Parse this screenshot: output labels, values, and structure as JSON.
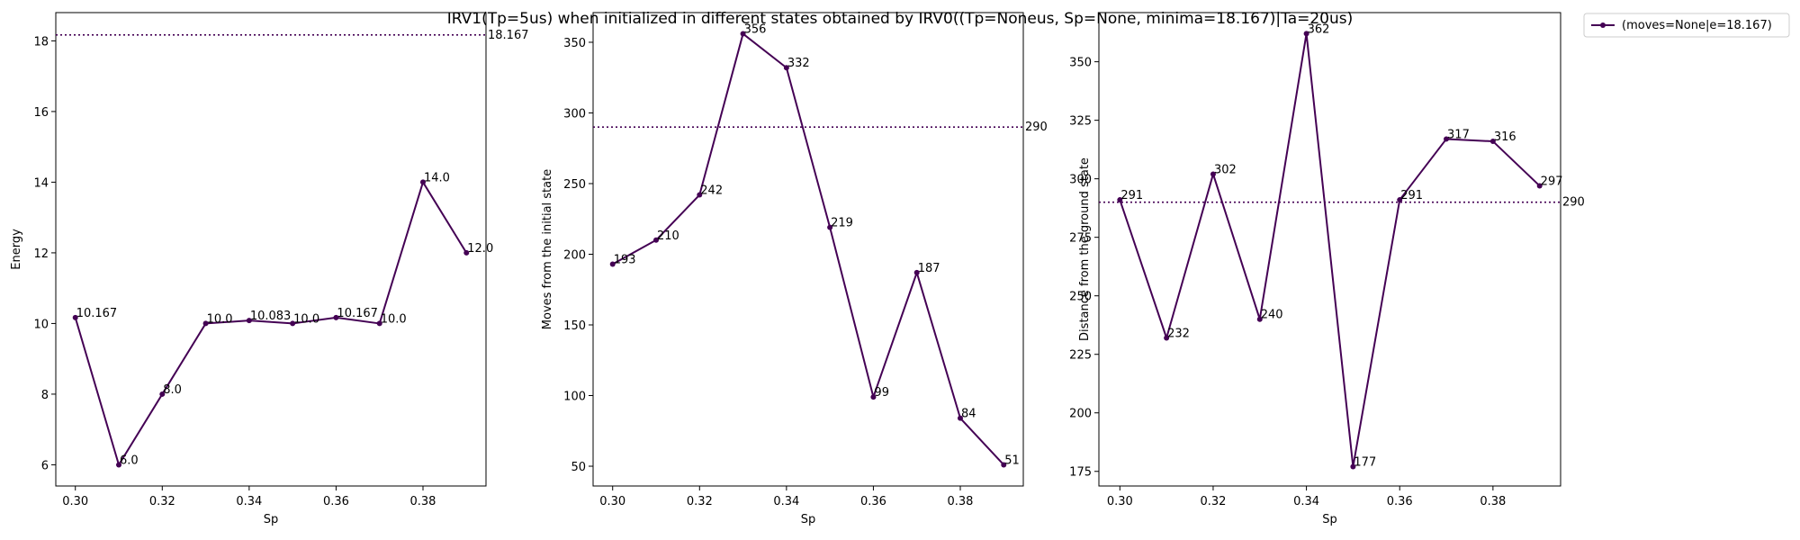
{
  "figure": {
    "title": "IRV1(Tp=5us) when initialized in different states obtained by IRV0((Tp=Noneus, Sp=None, minima=18.167)|Ta=20us)",
    "legend_label": "(moves=None|e=18.167)",
    "line_color": "#440154"
  },
  "chart_data": [
    {
      "type": "line",
      "xlabel": "Sp",
      "ylabel": "Energy",
      "x": [
        0.3,
        0.31,
        0.32,
        0.33,
        0.34,
        0.35,
        0.36,
        0.37,
        0.38,
        0.39
      ],
      "xticks": [
        0.3,
        0.32,
        0.34,
        0.36,
        0.38
      ],
      "xtick_labels": [
        "0.30",
        "0.32",
        "0.34",
        "0.36",
        "0.38"
      ],
      "xlim": [
        0.2955,
        0.3945
      ],
      "yticks": [
        6,
        8,
        10,
        12,
        14,
        16,
        18
      ],
      "ytick_labels": [
        "6",
        "8",
        "10",
        "12",
        "14",
        "16",
        "18"
      ],
      "ylim": [
        5.4,
        18.8
      ],
      "series": [
        {
          "name": "(moves=None|e=18.167)",
          "values": [
            10.167,
            6.0,
            8.0,
            10.0,
            10.083,
            10.0,
            10.167,
            10.0,
            14.0,
            12.0
          ],
          "point_labels": [
            "10.167",
            "6.0",
            "8.0",
            "10.0",
            "10.083",
            "10.0",
            "10.167",
            "10.0",
            "14.0",
            "12.0"
          ]
        }
      ],
      "reference_line": {
        "value": 18.167,
        "label": "18.167"
      }
    },
    {
      "type": "line",
      "xlabel": "Sp",
      "ylabel": "Moves from the initial state",
      "x": [
        0.3,
        0.31,
        0.32,
        0.33,
        0.34,
        0.35,
        0.36,
        0.37,
        0.38,
        0.39
      ],
      "xticks": [
        0.3,
        0.32,
        0.34,
        0.36,
        0.38
      ],
      "xtick_labels": [
        "0.30",
        "0.32",
        "0.34",
        "0.36",
        "0.38"
      ],
      "xlim": [
        0.2955,
        0.3945
      ],
      "yticks": [
        50,
        100,
        150,
        200,
        250,
        300,
        350
      ],
      "ytick_labels": [
        "50",
        "100",
        "150",
        "200",
        "250",
        "300",
        "350"
      ],
      "ylim": [
        36,
        371
      ],
      "series": [
        {
          "name": "(moves=None|e=18.167)",
          "values": [
            193,
            210,
            242,
            356,
            332,
            219,
            99,
            187,
            84,
            51
          ],
          "point_labels": [
            "193",
            "210",
            "242",
            "356",
            "332",
            "219",
            "99",
            "187",
            "84",
            "51"
          ]
        }
      ],
      "reference_line": {
        "value": 290,
        "label": "290"
      }
    },
    {
      "type": "line",
      "xlabel": "Sp",
      "ylabel": "Distance from the ground state",
      "x": [
        0.3,
        0.31,
        0.32,
        0.33,
        0.34,
        0.35,
        0.36,
        0.37,
        0.38,
        0.39
      ],
      "xticks": [
        0.3,
        0.32,
        0.34,
        0.36,
        0.38
      ],
      "xtick_labels": [
        "0.30",
        "0.32",
        "0.34",
        "0.36",
        "0.38"
      ],
      "xlim": [
        0.2955,
        0.3945
      ],
      "yticks": [
        175,
        200,
        225,
        250,
        275,
        300,
        325,
        350
      ],
      "ytick_labels": [
        "175",
        "200",
        "225",
        "250",
        "275",
        "300",
        "325",
        "350"
      ],
      "ylim": [
        168.75,
        371
      ],
      "series": [
        {
          "name": "(moves=None|e=18.167)",
          "values": [
            291,
            232,
            302,
            240,
            362,
            177,
            291,
            317,
            316,
            297
          ],
          "point_labels": [
            "291",
            "232",
            "302",
            "240",
            "362",
            "177",
            "291",
            "317",
            "316",
            "297"
          ]
        }
      ],
      "reference_line": {
        "value": 290,
        "label": "290"
      }
    }
  ]
}
